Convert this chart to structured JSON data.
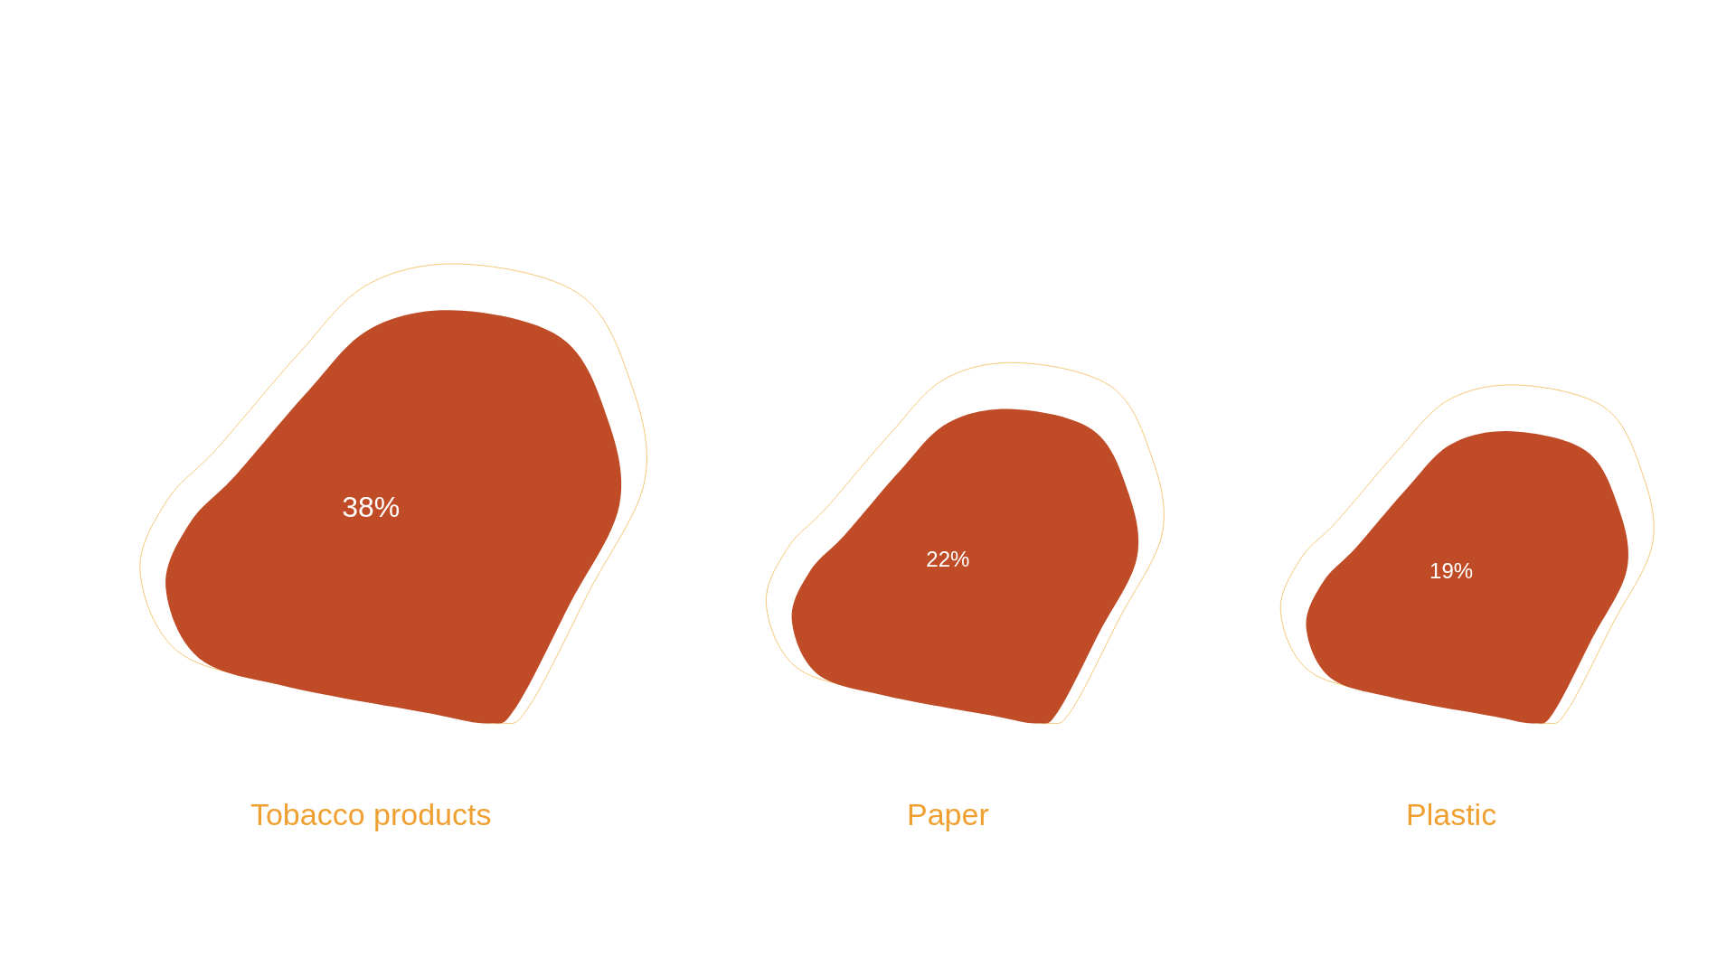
{
  "chart_data": {
    "type": "other",
    "categories": [
      "Tobacco products",
      "Paper",
      "Plastic"
    ],
    "values": [
      38,
      22,
      19
    ],
    "color": "#c04b27",
    "value_labels": [
      "38%",
      "22%",
      "19%"
    ]
  }
}
